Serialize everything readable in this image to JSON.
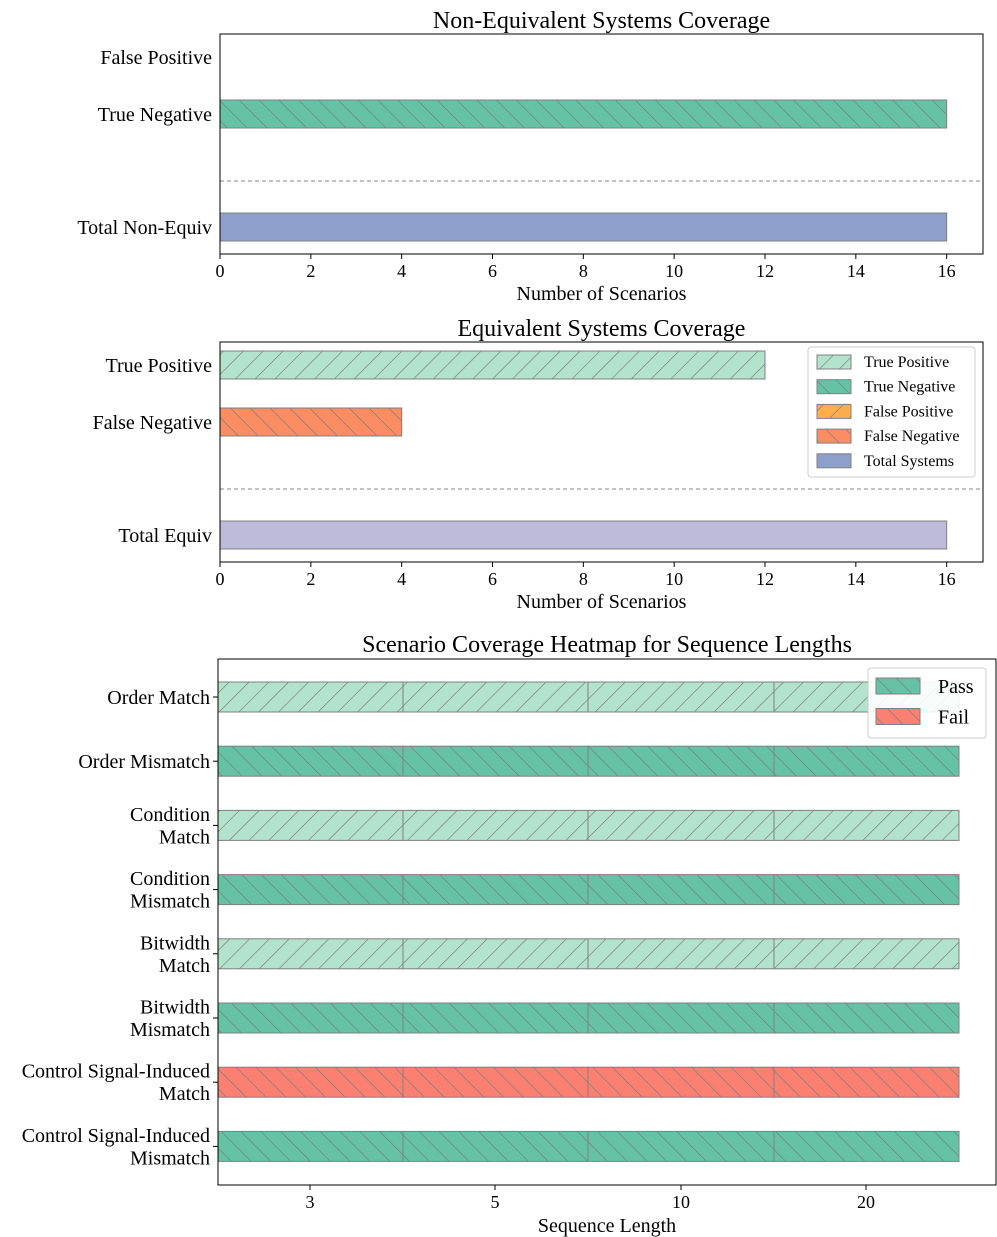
{
  "colors": {
    "true_positive": "#b3e2cd",
    "true_negative": "#66c2a5",
    "false_positive": "#fdae4b",
    "false_negative": "#fc8d62",
    "fail": "#fb8072",
    "total_systems": "#8da0cb",
    "total_equiv": "#bebada",
    "edge": "#808080"
  },
  "chart_data": [
    {
      "type": "bar",
      "orientation": "horizontal",
      "title": "Non-Equivalent Systems Coverage",
      "xlabel": "Number of Scenarios",
      "xlim": [
        0,
        16.8
      ],
      "xticks": [
        0,
        2,
        4,
        6,
        8,
        10,
        12,
        14,
        16
      ],
      "categories": [
        "False Positive",
        "True Negative",
        "Total Non-Equiv"
      ],
      "values": [
        0,
        16,
        16
      ],
      "series_keys": [
        "false_positive",
        "true_negative",
        "total_systems"
      ],
      "separator_between": "True Negative / Total Non-Equiv"
    },
    {
      "type": "bar",
      "orientation": "horizontal",
      "title": "Equivalent Systems Coverage",
      "xlabel": "Number of Scenarios",
      "xlim": [
        0,
        16.8
      ],
      "xticks": [
        0,
        2,
        4,
        6,
        8,
        10,
        12,
        14,
        16
      ],
      "categories": [
        "True Positive",
        "False Negative",
        "Total Equiv"
      ],
      "values": [
        12,
        4,
        16
      ],
      "series_keys": [
        "true_positive",
        "false_negative",
        "total_equiv"
      ],
      "separator_between": "False Negative / Total Equiv",
      "legend": {
        "placement": "top-right",
        "entries": [
          {
            "label": "True Positive",
            "key": "true_positive"
          },
          {
            "label": "True Negative",
            "key": "true_negative"
          },
          {
            "label": "False Positive",
            "key": "false_positive"
          },
          {
            "label": "False Negative",
            "key": "false_negative"
          },
          {
            "label": "Total Systems",
            "key": "total_systems"
          }
        ]
      }
    },
    {
      "type": "heatmap",
      "title": "Scenario Coverage Heatmap for Sequence Lengths",
      "xlabel": "Sequence Length",
      "xticks": [
        "3",
        "5",
        "10",
        "20"
      ],
      "rows": [
        {
          "label": [
            "Order Match"
          ],
          "status": "Pass",
          "kind": "match"
        },
        {
          "label": [
            "Order Mismatch"
          ],
          "status": "Pass",
          "kind": "mismatch"
        },
        {
          "label": [
            "Condition",
            "Match"
          ],
          "status": "Pass",
          "kind": "match"
        },
        {
          "label": [
            "Condition",
            "Mismatch"
          ],
          "status": "Pass",
          "kind": "mismatch"
        },
        {
          "label": [
            "Bitwidth",
            "Match"
          ],
          "status": "Pass",
          "kind": "match"
        },
        {
          "label": [
            "Bitwidth",
            "Mismatch"
          ],
          "status": "Pass",
          "kind": "mismatch"
        },
        {
          "label": [
            "Control Signal-Induced",
            "Match"
          ],
          "status": "Fail",
          "kind": "match"
        },
        {
          "label": [
            "Control Signal-Induced",
            "Mismatch"
          ],
          "status": "Pass",
          "kind": "mismatch"
        }
      ],
      "legend": {
        "placement": "top-right",
        "entries": [
          {
            "label": "Pass",
            "key": "true_negative"
          },
          {
            "label": "Fail",
            "key": "fail"
          }
        ]
      }
    }
  ]
}
